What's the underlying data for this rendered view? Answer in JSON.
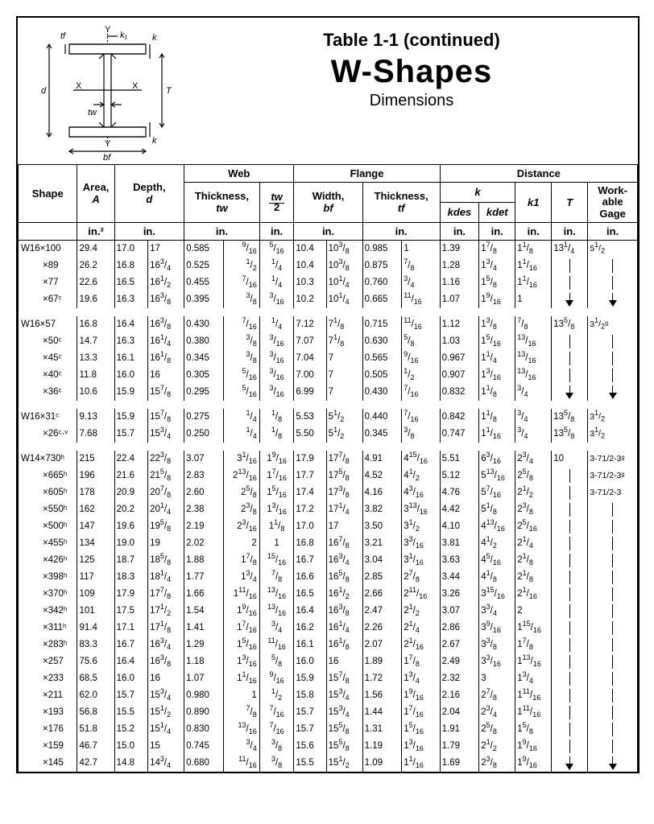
{
  "title": {
    "table": "Table 1-1 (continued)",
    "main": "W-Shapes",
    "sub": "Dimensions"
  },
  "diagram_labels": {
    "tf": "tf",
    "k1": "k₁",
    "k": "k",
    "d": "d",
    "X": "X",
    "T": "T",
    "tw": "tw",
    "Y": "Y",
    "bf": "bf"
  },
  "headers": {
    "shape": "Shape",
    "area": "Area,",
    "area_sym": "A",
    "depth": "Depth,",
    "depth_sym": "d",
    "web": "Web",
    "web_th": "Thickness,",
    "web_th_sym": "tw",
    "tw2_top": "tw",
    "tw2_bot": "2",
    "flange": "Flange",
    "fl_width": "Width,",
    "fl_width_sym": "bf",
    "fl_th": "Thickness,",
    "fl_th_sym": "tf",
    "distance": "Distance",
    "k": "k",
    "kdes": "kdes",
    "kdet": "kdet",
    "k1": "k1",
    "T": "T",
    "gage": "Work-\nable\nGage",
    "in2": "in.²",
    "in": "in."
  },
  "rows": [
    {
      "g": 1,
      "s": "W16×100",
      "a": "29.4",
      "d1": "17.0",
      "d2": "17",
      "tw1": "0.585",
      "tw2": "9/16",
      "tw3": "5/16",
      "bf1": "10.4",
      "bf2": "10 3/8",
      "tf1": "0.985",
      "tf2": "1",
      "kd": "1.39",
      "kt": "1 7/8",
      "k1": "1 1/8",
      "T": "13 1/4",
      "G": "5 1/2"
    },
    {
      "s": "×89",
      "a": "26.2",
      "d1": "16.8",
      "d2": "16 3/4",
      "tw1": "0.525",
      "tw2": "1/2",
      "tw3": "1/4",
      "bf1": "10.4",
      "bf2": "10 3/8",
      "tf1": "0.875",
      "tf2": "7/8",
      "kd": "1.28",
      "kt": "1 3/4",
      "k1": "1 1/16",
      "T": "|",
      "G": "|"
    },
    {
      "s": "×77",
      "a": "22.6",
      "d1": "16.5",
      "d2": "16 1/2",
      "tw1": "0.455",
      "tw2": "7/16",
      "tw3": "1/4",
      "bf1": "10.3",
      "bf2": "10 1/4",
      "tf1": "0.760",
      "tf2": "3/4",
      "kd": "1.16",
      "kt": "1 5/8",
      "k1": "1 1/16",
      "T": "|",
      "G": "|"
    },
    {
      "s": "×67ᶜ",
      "a": "19.6",
      "d1": "16.3",
      "d2": "16 3/8",
      "tw1": "0.395",
      "tw2": "3/8",
      "tw3": "3/16",
      "bf1": "10.2",
      "bf2": "10 1/4",
      "tf1": "0.665",
      "tf2": "11/16",
      "kd": "1.07",
      "kt": "1 9/16",
      "k1": "1",
      "T": "V",
      "G": "V"
    },
    {
      "g": 1,
      "sp": 1
    },
    {
      "s": "W16×57",
      "a": "16.8",
      "d1": "16.4",
      "d2": "16 3/8",
      "tw1": "0.430",
      "tw2": "7/16",
      "tw3": "1/4",
      "bf1": "7.12",
      "bf2": "7 1/8",
      "tf1": "0.715",
      "tf2": "11/16",
      "kd": "1.12",
      "kt": "1 3/8",
      "k1": "7/8",
      "T": "13 5/8",
      "G": "3 1/2ᵍ"
    },
    {
      "s": "×50ᶜ",
      "a": "14.7",
      "d1": "16.3",
      "d2": "16 1/4",
      "tw1": "0.380",
      "tw2": "3/8",
      "tw3": "3/16",
      "bf1": "7.07",
      "bf2": "7 1/8",
      "tf1": "0.630",
      "tf2": "5/8",
      "kd": "1.03",
      "kt": "1 5/16",
      "k1": "13/16",
      "T": "|",
      "G": "|"
    },
    {
      "s": "×45ᶜ",
      "a": "13.3",
      "d1": "16.1",
      "d2": "16 1/8",
      "tw1": "0.345",
      "tw2": "3/8",
      "tw3": "3/16",
      "bf1": "7.04",
      "bf2": "7",
      "tf1": "0.565",
      "tf2": "9/16",
      "kd": "0.967",
      "kt": "1 1/4",
      "k1": "13/16",
      "T": "|",
      "G": "|"
    },
    {
      "s": "×40ᶜ",
      "a": "11.8",
      "d1": "16.0",
      "d2": "16",
      "tw1": "0.305",
      "tw2": "5/16",
      "tw3": "3/16",
      "bf1": "7.00",
      "bf2": "7",
      "tf1": "0.505",
      "tf2": "1/2",
      "kd": "0.907",
      "kt": "1 3/16",
      "k1": "13/16",
      "T": "|",
      "G": "|"
    },
    {
      "s": "×36ᶜ",
      "a": "10.6",
      "d1": "15.9",
      "d2": "15 7/8",
      "tw1": "0.295",
      "tw2": "5/16",
      "tw3": "3/16",
      "bf1": "6.99",
      "bf2": "7",
      "tf1": "0.430",
      "tf2": "7/16",
      "kd": "0.832",
      "kt": "1 1/8",
      "k1": "3/4",
      "T": "V",
      "G": "V"
    },
    {
      "g": 1,
      "sp": 1
    },
    {
      "s": "W16×31ᶜ",
      "a": "9.13",
      "d1": "15.9",
      "d2": "15 7/8",
      "tw1": "0.275",
      "tw2": "1/4",
      "tw3": "1/8",
      "bf1": "5.53",
      "bf2": "5 1/2",
      "tf1": "0.440",
      "tf2": "7/16",
      "kd": "0.842",
      "kt": "1 1/8",
      "k1": "3/4",
      "T": "13 5/8",
      "G": "3 1/2"
    },
    {
      "s": "×26ᶜ·ᵛ",
      "a": "7.68",
      "d1": "15.7",
      "d2": "15 3/4",
      "tw1": "0.250",
      "tw2": "1/4",
      "tw3": "1/8",
      "bf1": "5.50",
      "bf2": "5 1/2",
      "tf1": "0.345",
      "tf2": "3/8",
      "kd": "0.747",
      "kt": "1 1/16",
      "k1": "3/4",
      "T": "13 5/8",
      "G": "3 1/2"
    },
    {
      "g": 1,
      "sp": 1
    },
    {
      "s": "W14×730ʰ",
      "a": "215",
      "d1": "22.4",
      "d2": "22 3/8",
      "tw1": "3.07",
      "tw2": "3 1/16",
      "tw3": "1 9/16",
      "bf1": "17.9",
      "bf2": "17 7/8",
      "tf1": "4.91",
      "tf2": "4 15/16",
      "kd": "5.51",
      "kt": "6 3/16",
      "k1": "2 3/4",
      "T": "10",
      "G": "3-7 1/2-3ᵍ"
    },
    {
      "s": "×665ʰ",
      "a": "196",
      "d1": "21.6",
      "d2": "21 5/8",
      "tw1": "2.83",
      "tw2": "2 13/16",
      "tw3": "1 7/16",
      "bf1": "17.7",
      "bf2": "17 5/8",
      "tf1": "4.52",
      "tf2": "4 1/2",
      "kd": "5.12",
      "kt": "5 13/16",
      "k1": "2 5/8",
      "T": "|",
      "G": "3-7 1/2-3ᵍ"
    },
    {
      "s": "×605ʰ",
      "a": "178",
      "d1": "20.9",
      "d2": "20 7/8",
      "tw1": "2.60",
      "tw2": "2 5/8",
      "tw3": "1 5/16",
      "bf1": "17.4",
      "bf2": "17 3/8",
      "tf1": "4.16",
      "tf2": "4 3/16",
      "kd": "4.76",
      "kt": "5 7/16",
      "k1": "2 1/2",
      "T": "|",
      "G": "3-7 1/2-3"
    },
    {
      "s": "×550ʰ",
      "a": "162",
      "d1": "20.2",
      "d2": "20 1/4",
      "tw1": "2.38",
      "tw2": "2 3/8",
      "tw3": "1 3/16",
      "bf1": "17.2",
      "bf2": "17 1/4",
      "tf1": "3.82",
      "tf2": "3 13/16",
      "kd": "4.42",
      "kt": "5 1/8",
      "k1": "2 3/8",
      "T": "|",
      "G": "|"
    },
    {
      "s": "×500ʰ",
      "a": "147",
      "d1": "19.6",
      "d2": "19 5/8",
      "tw1": "2.19",
      "tw2": "2 3/16",
      "tw3": "1 1/8",
      "bf1": "17.0",
      "bf2": "17",
      "tf1": "3.50",
      "tf2": "3 1/2",
      "kd": "4.10",
      "kt": "4 13/16",
      "k1": "2 5/16",
      "T": "|",
      "G": "|"
    },
    {
      "s": "×455ʰ",
      "a": "134",
      "d1": "19.0",
      "d2": "19",
      "tw1": "2.02",
      "tw2": "2",
      "tw3": "1",
      "bf1": "16.8",
      "bf2": "16 7/8",
      "tf1": "3.21",
      "tf2": "3 3/16",
      "kd": "3.81",
      "kt": "4 1/2",
      "k1": "2 1/4",
      "T": "|",
      "G": "|"
    },
    {
      "s": "×426ʰ",
      "a": "125",
      "d1": "18.7",
      "d2": "18 5/8",
      "tw1": "1.88",
      "tw2": "1 7/8",
      "tw3": "15/16",
      "bf1": "16.7",
      "bf2": "16 3/4",
      "tf1": "3.04",
      "tf2": "3 1/16",
      "kd": "3.63",
      "kt": "4 5/16",
      "k1": "2 1/8",
      "T": "|",
      "G": "|"
    },
    {
      "s": "×398ʰ",
      "a": "117",
      "d1": "18.3",
      "d2": "18 1/4",
      "tw1": "1.77",
      "tw2": "1 3/4",
      "tw3": "7/8",
      "bf1": "16.6",
      "bf2": "16 5/8",
      "tf1": "2.85",
      "tf2": "2 7/8",
      "kd": "3.44",
      "kt": "4 1/8",
      "k1": "2 1/8",
      "T": "|",
      "G": "|"
    },
    {
      "s": "×370ʰ",
      "a": "109",
      "d1": "17.9",
      "d2": "17 7/8",
      "tw1": "1.66",
      "tw2": "1 11/16",
      "tw3": "13/16",
      "bf1": "16.5",
      "bf2": "16 1/2",
      "tf1": "2.66",
      "tf2": "2 11/16",
      "kd": "3.26",
      "kt": "3 15/16",
      "k1": "2 1/16",
      "T": "|",
      "G": "|"
    },
    {
      "s": "×342ʰ",
      "a": "101",
      "d1": "17.5",
      "d2": "17 1/2",
      "tw1": "1.54",
      "tw2": "1 9/16",
      "tw3": "13/16",
      "bf1": "16.4",
      "bf2": "16 3/8",
      "tf1": "2.47",
      "tf2": "2 1/2",
      "kd": "3.07",
      "kt": "3 3/4",
      "k1": "2",
      "T": "|",
      "G": "|"
    },
    {
      "s": "×311ʰ",
      "a": "91.4",
      "d1": "17.1",
      "d2": "17 1/8",
      "tw1": "1.41",
      "tw2": "1 7/16",
      "tw3": "3/4",
      "bf1": "16.2",
      "bf2": "16 1/4",
      "tf1": "2.26",
      "tf2": "2 1/4",
      "kd": "2.86",
      "kt": "3 9/16",
      "k1": "1 15/16",
      "T": "|",
      "G": "|"
    },
    {
      "s": "×283ʰ",
      "a": "83.3",
      "d1": "16.7",
      "d2": "16 3/4",
      "tw1": "1.29",
      "tw2": "1 5/16",
      "tw3": "11/16",
      "bf1": "16.1",
      "bf2": "16 1/8",
      "tf1": "2.07",
      "tf2": "2 1/16",
      "kd": "2.67",
      "kt": "3 3/8",
      "k1": "1 7/8",
      "T": "|",
      "G": "|"
    },
    {
      "s": "×257",
      "a": "75.6",
      "d1": "16.4",
      "d2": "16 3/8",
      "tw1": "1.18",
      "tw2": "1 3/16",
      "tw3": "5/8",
      "bf1": "16.0",
      "bf2": "16",
      "tf1": "1.89",
      "tf2": "1 7/8",
      "kd": "2.49",
      "kt": "3 3/16",
      "k1": "1 13/16",
      "T": "|",
      "G": "|"
    },
    {
      "s": "×233",
      "a": "68.5",
      "d1": "16.0",
      "d2": "16",
      "tw1": "1.07",
      "tw2": "1 1/16",
      "tw3": "9/16",
      "bf1": "15.9",
      "bf2": "15 7/8",
      "tf1": "1.72",
      "tf2": "1 3/4",
      "kd": "2.32",
      "kt": "3",
      "k1": "1 3/4",
      "T": "|",
      "G": "|"
    },
    {
      "s": "×211",
      "a": "62.0",
      "d1": "15.7",
      "d2": "15 3/4",
      "tw1": "0.980",
      "tw2": "1",
      "tw3": "1/2",
      "bf1": "15.8",
      "bf2": "15 3/4",
      "tf1": "1.56",
      "tf2": "1 9/16",
      "kd": "2.16",
      "kt": "2 7/8",
      "k1": "1 11/16",
      "T": "|",
      "G": "|"
    },
    {
      "s": "×193",
      "a": "56.8",
      "d1": "15.5",
      "d2": "15 1/2",
      "tw1": "0.890",
      "tw2": "7/8",
      "tw3": "7/16",
      "bf1": "15.7",
      "bf2": "15 3/4",
      "tf1": "1.44",
      "tf2": "1 7/16",
      "kd": "2.04",
      "kt": "2 3/4",
      "k1": "1 11/16",
      "T": "|",
      "G": "|"
    },
    {
      "s": "×176",
      "a": "51.8",
      "d1": "15.2",
      "d2": "15 1/4",
      "tw1": "0.830",
      "tw2": "13/16",
      "tw3": "7/16",
      "bf1": "15.7",
      "bf2": "15 5/8",
      "tf1": "1.31",
      "tf2": "1 5/16",
      "kd": "1.91",
      "kt": "2 5/8",
      "k1": "1 5/8",
      "T": "|",
      "G": "|"
    },
    {
      "s": "×159",
      "a": "46.7",
      "d1": "15.0",
      "d2": "15",
      "tw1": "0.745",
      "tw2": "3/4",
      "tw3": "3/8",
      "bf1": "15.6",
      "bf2": "15 5/8",
      "tf1": "1.19",
      "tf2": "1 3/16",
      "kd": "1.79",
      "kt": "2 1/2",
      "k1": "1 9/16",
      "T": "|",
      "G": "|"
    },
    {
      "s": "×145",
      "a": "42.7",
      "d1": "14.8",
      "d2": "14 3/4",
      "tw1": "0.680",
      "tw2": "11/16",
      "tw3": "3/8",
      "bf1": "15.5",
      "bf2": "15 1/2",
      "tf1": "1.09",
      "tf2": "1 1/16",
      "kd": "1.69",
      "kt": "2 3/8",
      "k1": "1 9/16",
      "T": "V",
      "G": "V"
    }
  ]
}
